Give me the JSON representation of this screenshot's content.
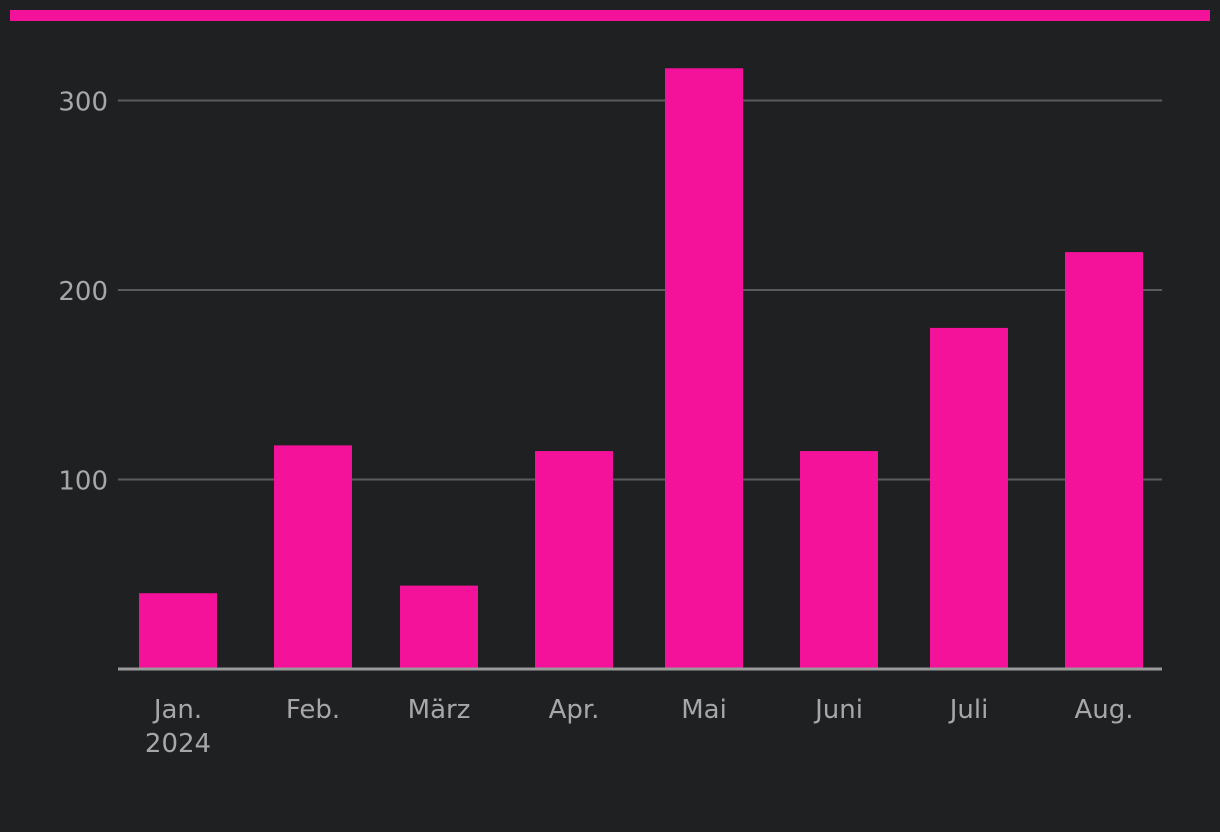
{
  "colors": {
    "background": "#1f2022",
    "accent": "#f5129a",
    "bar": "#f5129a",
    "gridline": "#5a5b5e",
    "axis": "#9a9a9a",
    "tick_text": "#a7a7a7"
  },
  "chart_data": {
    "type": "bar",
    "title": "",
    "xlabel": "",
    "ylabel": "",
    "categories": [
      "Jan.",
      "Feb.",
      "März",
      "Apr.",
      "Mai",
      "Juni",
      "Juli",
      "Aug."
    ],
    "category_sublabels": [
      "2024",
      "",
      "",
      "",
      "",
      "",
      "",
      ""
    ],
    "values": [
      40,
      118,
      44,
      115,
      317,
      115,
      180,
      220
    ],
    "ylim": [
      0,
      330
    ],
    "yticks": [
      100,
      200,
      300
    ],
    "ytick_labels": [
      "100",
      "200",
      "300"
    ],
    "grid": true,
    "legend": "none"
  }
}
